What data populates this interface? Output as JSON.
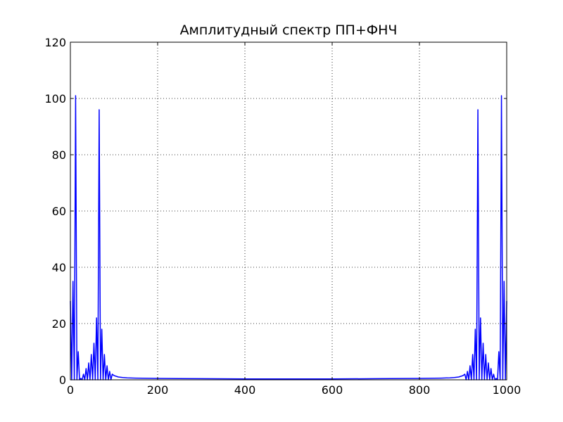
{
  "chart_data": {
    "type": "line",
    "title": "Амплитудный спектр ПП+ФНЧ",
    "xlabel": "",
    "ylabel": "",
    "xlim": [
      0,
      1000
    ],
    "ylim": [
      0,
      120
    ],
    "xticks": [
      0,
      200,
      400,
      600,
      800,
      1000
    ],
    "yticks": [
      0,
      20,
      40,
      60,
      80,
      100,
      120
    ],
    "xtick_labels": [
      "0",
      "200",
      "400",
      "600",
      "800",
      "1000"
    ],
    "ytick_labels": [
      "0",
      "20",
      "40",
      "60",
      "80",
      "100",
      "120"
    ],
    "grid": true,
    "line_color": "#0000ff",
    "series": [
      {
        "x": [
          0,
          3,
          6,
          9,
          12,
          15,
          18,
          21,
          24,
          27,
          30,
          33,
          36,
          39,
          42,
          45,
          48,
          51,
          54,
          57,
          60,
          63,
          66,
          69,
          72,
          75,
          78,
          81,
          84,
          87,
          90,
          93,
          96,
          100,
          110,
          120,
          130,
          150,
          200,
          300,
          400,
          500,
          600,
          700,
          800,
          850,
          870,
          880,
          890,
          900,
          904,
          907,
          910,
          913,
          916,
          919,
          922,
          925,
          928,
          931,
          934,
          937,
          940,
          943,
          946,
          949,
          952,
          955,
          958,
          961,
          964,
          967,
          970,
          973,
          976,
          979,
          982,
          985,
          988,
          991,
          994,
          997,
          1000
        ],
        "values": [
          28,
          0,
          35,
          0,
          101,
          0,
          10,
          0,
          0.5,
          0,
          2,
          0,
          4,
          0,
          6,
          0,
          9,
          0,
          13,
          0,
          22,
          0,
          96,
          0,
          18,
          0,
          9,
          0,
          5,
          0,
          3,
          0,
          2,
          1.5,
          1,
          0.8,
          0.7,
          0.6,
          0.5,
          0.4,
          0.3,
          0.3,
          0.3,
          0.4,
          0.5,
          0.6,
          0.7,
          0.8,
          1,
          1.5,
          2,
          0,
          3,
          0,
          5,
          0,
          9,
          0,
          18,
          0,
          96,
          0,
          22,
          0,
          13,
          0,
          9,
          0,
          6,
          0,
          4,
          0,
          2,
          0,
          0.5,
          0,
          10,
          0,
          101,
          0,
          35,
          0,
          28
        ]
      }
    ]
  }
}
